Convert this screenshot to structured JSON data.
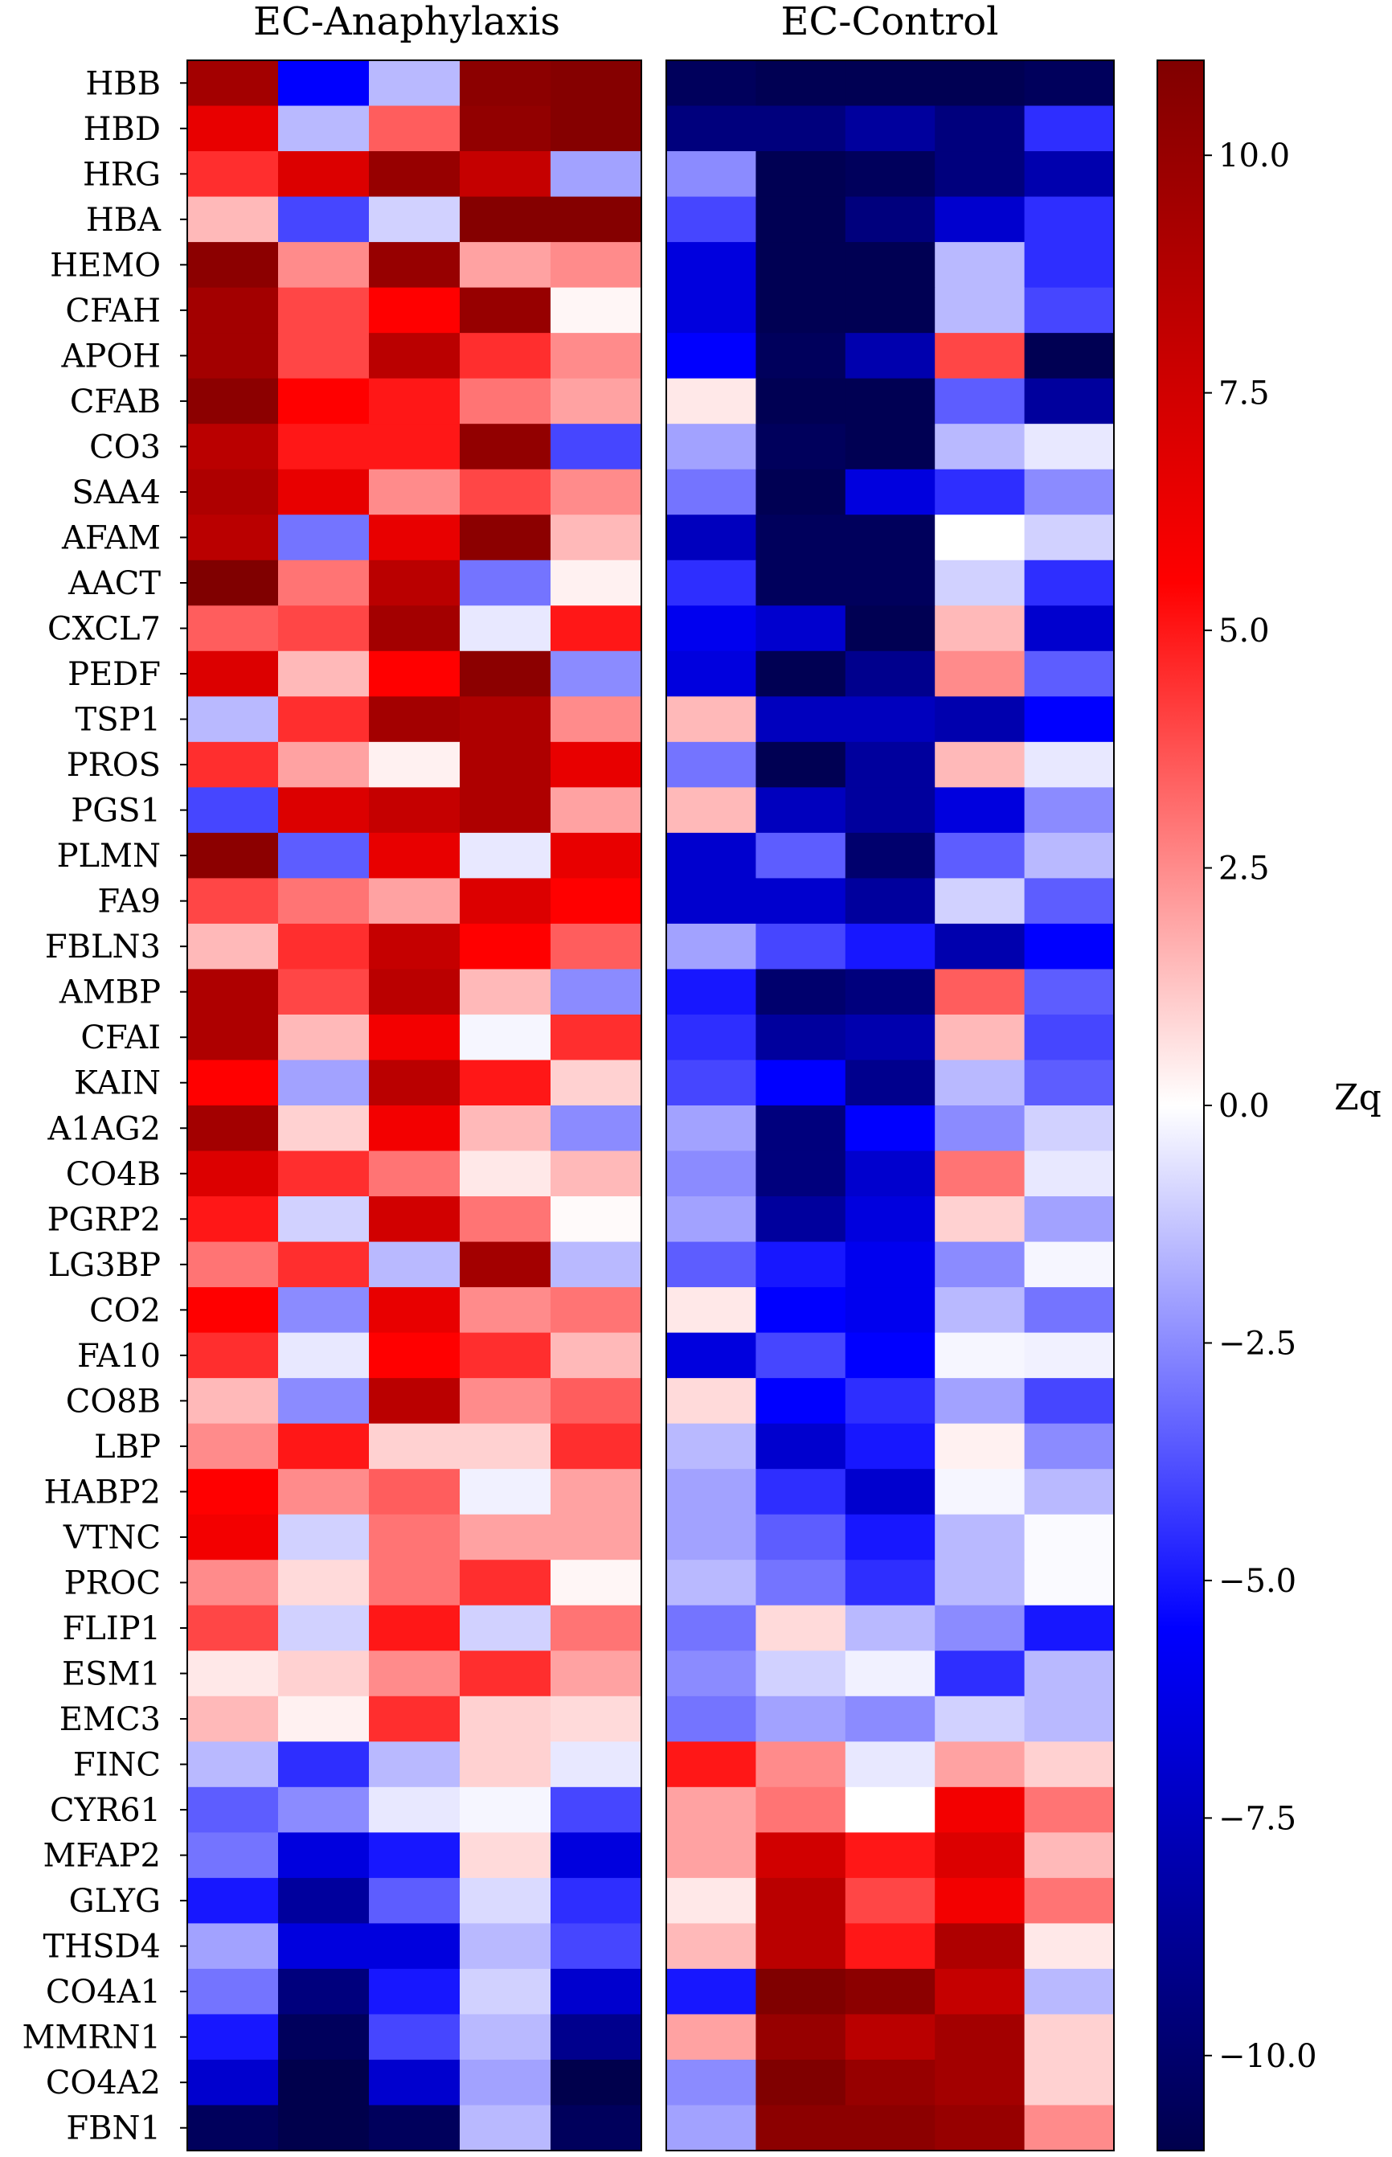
{
  "chart_data": {
    "type": "heatmap",
    "panels": [
      {
        "title": "EC-Anaphylaxis"
      },
      {
        "title": "EC-Control"
      }
    ],
    "genes": [
      "HBB",
      "HBD",
      "HRG",
      "HBA",
      "HEMO",
      "CFAH",
      "APOH",
      "CFAB",
      "CO3",
      "SAA4",
      "AFAM",
      "AACT",
      "CXCL7",
      "PEDF",
      "TSP1",
      "PROS",
      "PGS1",
      "PLMN",
      "FA9",
      "FBLN3",
      "AMBP",
      "CFAI",
      "KAIN",
      "A1AG2",
      "CO4B",
      "PGRP2",
      "LG3BP",
      "CO2",
      "FA10",
      "CO8B",
      "LBP",
      "HABP2",
      "VTNC",
      "PROC",
      "FLIP1",
      "ESM1",
      "EMC3",
      "FINC",
      "CYR61",
      "MFAP2",
      "GLYG",
      "THSD4",
      "CO4A1",
      "MMRN1",
      "CO4A2",
      "FBN1"
    ],
    "colorbar": {
      "label": "Zq",
      "vmin": -11,
      "vmax": 11,
      "ticks": [
        10.0,
        7.5,
        5.0,
        2.5,
        0.0,
        -2.5,
        -5.0,
        -7.5,
        -10.0
      ],
      "tick_labels": [
        "10.0",
        "7.5",
        "5.0",
        "2.5",
        "0.0",
        "−2.5",
        "−5.0",
        "−7.5",
        "−10.0"
      ]
    },
    "colormap": {
      "low": "#00004c",
      "mid_low": "#0000ff",
      "mid": "#ffffff",
      "mid_high": "#ff0000",
      "high": "#800000"
    },
    "values": {
      "EC-Anaphylaxis": [
        [
          9.5,
          -5.5,
          -1.5,
          10.5,
          10.8
        ],
        [
          6.5,
          -1.5,
          3.5,
          10.2,
          10.8
        ],
        [
          4.5,
          7.0,
          10.0,
          8.0,
          -2.0
        ],
        [
          1.5,
          -4.0,
          -1.0,
          10.8,
          10.8
        ],
        [
          10.5,
          2.5,
          10.0,
          2.0,
          2.5
        ],
        [
          9.5,
          4.0,
          5.5,
          10.0,
          0.2
        ],
        [
          9.5,
          4.0,
          8.5,
          4.5,
          2.5
        ],
        [
          10.5,
          5.5,
          5.0,
          3.0,
          2.0
        ],
        [
          8.5,
          5.0,
          5.0,
          10.2,
          -4.0
        ],
        [
          9.0,
          6.5,
          2.5,
          4.0,
          2.5
        ],
        [
          8.5,
          -3.0,
          6.5,
          10.5,
          1.5
        ],
        [
          11.0,
          3.0,
          8.5,
          -3.0,
          0.3
        ],
        [
          3.5,
          4.0,
          9.5,
          -0.5,
          5.0
        ],
        [
          7.0,
          1.5,
          5.5,
          10.5,
          -2.5
        ],
        [
          -1.5,
          4.5,
          9.5,
          9.0,
          2.5
        ],
        [
          4.5,
          2.0,
          0.3,
          9.0,
          6.5
        ],
        [
          -4.0,
          7.0,
          8.0,
          9.0,
          2.0
        ],
        [
          10.5,
          -3.5,
          6.5,
          -0.5,
          6.5
        ],
        [
          4.0,
          3.0,
          2.0,
          7.0,
          5.5
        ],
        [
          1.5,
          4.5,
          8.0,
          5.5,
          3.5
        ],
        [
          9.0,
          4.0,
          8.5,
          1.5,
          -2.5
        ],
        [
          9.0,
          1.5,
          6.0,
          -0.2,
          4.5
        ],
        [
          5.5,
          -2.0,
          8.5,
          5.0,
          1.0
        ],
        [
          9.5,
          1.0,
          6.0,
          1.5,
          -2.5
        ],
        [
          7.0,
          4.5,
          3.0,
          0.5,
          1.5
        ],
        [
          5.0,
          -1.0,
          7.5,
          3.0,
          0.1
        ],
        [
          3.0,
          4.5,
          -1.5,
          9.5,
          -1.5
        ],
        [
          5.5,
          -2.5,
          6.5,
          2.5,
          3.0
        ],
        [
          4.5,
          -0.5,
          5.5,
          4.5,
          1.5
        ],
        [
          1.5,
          -2.5,
          8.5,
          2.5,
          3.5
        ],
        [
          2.5,
          5.0,
          1.0,
          1.0,
          4.5
        ],
        [
          5.5,
          2.5,
          3.5,
          -0.3,
          2.0
        ],
        [
          6.0,
          -1.0,
          3.0,
          2.0,
          2.0
        ],
        [
          2.5,
          0.8,
          3.0,
          4.5,
          0.2
        ],
        [
          4.0,
          -1.0,
          5.0,
          -1.0,
          3.0
        ],
        [
          0.5,
          1.0,
          2.5,
          4.5,
          2.0
        ],
        [
          1.5,
          0.3,
          4.5,
          1.0,
          0.8
        ],
        [
          -1.5,
          -4.5,
          -1.5,
          1.0,
          -0.5
        ],
        [
          -3.5,
          -2.5,
          -0.5,
          -0.2,
          -4.0
        ],
        [
          -3.0,
          -6.5,
          -5.0,
          0.8,
          -6.5
        ],
        [
          -5.0,
          -8.5,
          -3.5,
          -0.8,
          -4.5
        ],
        [
          -2.0,
          -6.5,
          -6.5,
          -1.5,
          -4.0
        ],
        [
          -3.0,
          -9.5,
          -5.0,
          -1.0,
          -7.0
        ],
        [
          -5.0,
          -10.5,
          -4.0,
          -1.5,
          -9.0
        ],
        [
          -7.0,
          -11.0,
          -7.0,
          -2.0,
          -11.0
        ],
        [
          -10.5,
          -11.0,
          -10.5,
          -1.5,
          -10.5
        ]
      ],
      "EC-Control": [
        [
          -10.5,
          -10.8,
          -10.8,
          -10.8,
          -10.5
        ],
        [
          -9.5,
          -9.5,
          -8.5,
          -9.5,
          -4.5
        ],
        [
          -2.5,
          -10.8,
          -10.5,
          -9.5,
          -8.0
        ],
        [
          -4.0,
          -10.8,
          -9.5,
          -7.0,
          -4.5
        ],
        [
          -6.5,
          -10.8,
          -10.8,
          -1.5,
          -4.5
        ],
        [
          -6.5,
          -10.8,
          -10.8,
          -1.5,
          -4.0
        ],
        [
          -5.5,
          -10.5,
          -8.0,
          4.0,
          -10.8
        ],
        [
          0.5,
          -10.8,
          -10.8,
          -3.5,
          -8.5
        ],
        [
          -2.0,
          -10.5,
          -10.8,
          -1.5,
          -0.5
        ],
        [
          -3.0,
          -10.8,
          -6.5,
          -4.5,
          -2.5
        ],
        [
          -7.5,
          -10.5,
          -10.5,
          0.0,
          -1.0
        ],
        [
          -4.5,
          -10.5,
          -10.5,
          -1.0,
          -4.5
        ],
        [
          -6.0,
          -7.0,
          -10.8,
          1.5,
          -7.0
        ],
        [
          -6.5,
          -10.8,
          -9.0,
          2.5,
          -3.5
        ],
        [
          1.5,
          -7.5,
          -7.5,
          -8.0,
          -5.5
        ],
        [
          -3.0,
          -10.8,
          -8.5,
          1.5,
          -0.5
        ],
        [
          1.5,
          -7.5,
          -8.5,
          -6.5,
          -2.5
        ],
        [
          -7.0,
          -3.5,
          -10.0,
          -3.5,
          -1.5
        ],
        [
          -7.0,
          -7.0,
          -8.5,
          -1.0,
          -3.5
        ],
        [
          -2.0,
          -4.0,
          -5.0,
          -8.0,
          -5.5
        ],
        [
          -5.0,
          -10.0,
          -9.5,
          3.5,
          -3.5
        ],
        [
          -4.5,
          -8.5,
          -8.0,
          1.5,
          -4.0
        ],
        [
          -4.0,
          -5.5,
          -9.0,
          -1.5,
          -3.5
        ],
        [
          -2.0,
          -9.5,
          -5.5,
          -2.5,
          -1.0
        ],
        [
          -2.5,
          -9.5,
          -7.0,
          3.0,
          -0.5
        ],
        [
          -2.0,
          -8.5,
          -6.5,
          1.0,
          -2.0
        ],
        [
          -3.5,
          -5.0,
          -6.0,
          -2.5,
          -0.2
        ],
        [
          0.5,
          -5.5,
          -6.0,
          -1.5,
          -3.0
        ],
        [
          -6.5,
          -4.0,
          -5.5,
          -0.2,
          -0.3
        ],
        [
          0.8,
          -5.5,
          -4.5,
          -2.0,
          -4.0
        ],
        [
          -1.5,
          -7.0,
          -5.0,
          0.3,
          -2.5
        ],
        [
          -2.0,
          -4.5,
          -7.0,
          -0.2,
          -1.5
        ],
        [
          -2.0,
          -3.5,
          -5.0,
          -1.5,
          -0.1
        ],
        [
          -1.5,
          -3.0,
          -4.5,
          -1.5,
          -0.1
        ],
        [
          -3.0,
          0.8,
          -1.5,
          -2.5,
          -5.0
        ],
        [
          -2.5,
          -1.0,
          -0.3,
          -4.5,
          -1.5
        ],
        [
          -3.0,
          -2.0,
          -2.5,
          -1.0,
          -1.5
        ],
        [
          5.0,
          2.5,
          -0.5,
          2.0,
          1.0
        ],
        [
          2.0,
          3.0,
          0.0,
          6.0,
          3.0
        ],
        [
          2.0,
          7.5,
          5.0,
          7.0,
          1.5
        ],
        [
          0.5,
          8.5,
          4.0,
          6.0,
          3.0
        ],
        [
          1.5,
          8.5,
          5.0,
          9.0,
          0.5
        ],
        [
          -5.0,
          11.0,
          10.5,
          8.0,
          -1.5
        ],
        [
          2.0,
          10.0,
          8.5,
          9.5,
          1.0
        ],
        [
          -2.5,
          11.0,
          10.0,
          9.5,
          1.0
        ],
        [
          -2.0,
          10.5,
          10.5,
          10.0,
          2.5
        ]
      ]
    }
  }
}
